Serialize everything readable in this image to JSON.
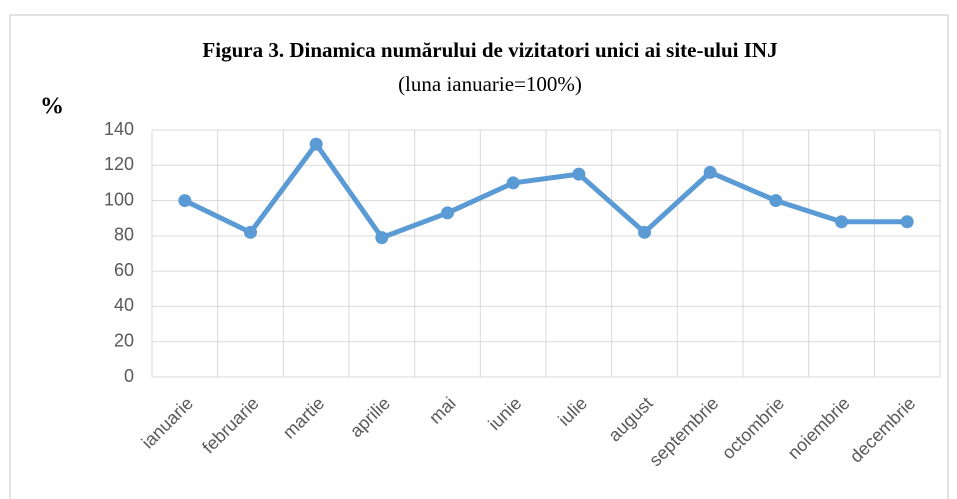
{
  "chart_data": {
    "type": "line",
    "title": "Figura 3. Dinamica numărului  de vizitatori unici ai site-ului INJ",
    "subtitle": "(luna ianuarie=100%)",
    "y_label": "%",
    "categories": [
      "ianuarie",
      "februarie",
      "martie",
      "aprilie",
      "mai",
      "iunie",
      "iulie",
      "august",
      "septembrie",
      "octombrie",
      "noiembrie",
      "decembrie"
    ],
    "series": [
      {
        "color": "#5b9bd5",
        "values": [
          100,
          82,
          132,
          79,
          93,
          110,
          115,
          82,
          116,
          100,
          88,
          88
        ]
      }
    ],
    "ylim": [
      0,
      140
    ],
    "yticks": [
      0,
      20,
      40,
      60,
      80,
      100,
      120,
      140
    ],
    "grid": true
  }
}
